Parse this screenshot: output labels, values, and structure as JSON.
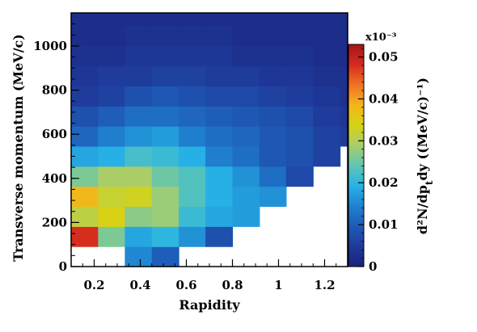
{
  "chart_data": {
    "type": "heatmap",
    "xlabel": "Rapidity",
    "ylabel": "Transverse momentum (MeV/c)",
    "zlabel": "d²N/dp",
    "zlabel_sub": "t",
    "zlabel_tail": "dy ((MeV/c)⁻¹)",
    "z_multiplier": "x10⁻³",
    "xlim": [
      0.1,
      1.3
    ],
    "ylim": [
      0,
      1150
    ],
    "zlim": [
      0,
      0.053
    ],
    "x_ticks": [
      {
        "v": 0.2,
        "label": "0.2"
      },
      {
        "v": 0.4,
        "label": "0.4"
      },
      {
        "v": 0.6,
        "label": "0.6"
      },
      {
        "v": 0.8,
        "label": "0.8"
      },
      {
        "v": 1.0,
        "label": "1"
      },
      {
        "v": 1.2,
        "label": "1.2"
      }
    ],
    "y_ticks": [
      {
        "v": 0,
        "label": "0"
      },
      {
        "v": 200,
        "label": "200"
      },
      {
        "v": 400,
        "label": "400"
      },
      {
        "v": 600,
        "label": "600"
      },
      {
        "v": 800,
        "label": "800"
      },
      {
        "v": 1000,
        "label": "1000"
      }
    ],
    "z_ticks": [
      {
        "v": 0,
        "label": "0"
      },
      {
        "v": 0.01,
        "label": "0.01"
      },
      {
        "v": 0.02,
        "label": "0.02"
      },
      {
        "v": 0.03,
        "label": "0.03"
      },
      {
        "v": 0.04,
        "label": "0.04"
      },
      {
        "v": 0.05,
        "label": "0.05"
      }
    ],
    "x_bin_edges": [
      0.1,
      0.217,
      0.333,
      0.45,
      0.567,
      0.683,
      0.8,
      0.917,
      1.033,
      1.15,
      1.267,
      1.3
    ],
    "y_bin_edges": [
      0,
      91,
      182,
      273,
      364,
      455,
      546,
      637,
      728,
      819,
      910,
      1001,
      1092,
      1150
    ],
    "z_values": [
      [
        null,
        null,
        0.015,
        0.01,
        null,
        null,
        null,
        null,
        null,
        null,
        null
      ],
      [
        0.048,
        0.026,
        0.018,
        0.02,
        0.016,
        0.008,
        null,
        null,
        null,
        null,
        null
      ],
      [
        0.031,
        0.034,
        0.027,
        0.028,
        0.021,
        0.018,
        0.017,
        null,
        null,
        null,
        null
      ],
      [
        0.038,
        0.032,
        0.033,
        0.028,
        0.023,
        0.019,
        0.017,
        0.016,
        null,
        null,
        null
      ],
      [
        0.026,
        0.029,
        0.029,
        0.025,
        0.023,
        0.019,
        0.016,
        0.012,
        0.007,
        null,
        null
      ],
      [
        0.018,
        0.019,
        0.022,
        0.021,
        0.019,
        0.014,
        0.012,
        0.009,
        0.008,
        0.006,
        null
      ],
      [
        0.011,
        0.014,
        0.016,
        0.017,
        0.014,
        0.012,
        0.011,
        0.009,
        0.008,
        0.006,
        0.005
      ],
      [
        0.008,
        0.01,
        0.012,
        0.012,
        0.011,
        0.01,
        0.009,
        0.008,
        0.007,
        0.005,
        0.004
      ],
      [
        0.005,
        0.006,
        0.008,
        0.009,
        0.008,
        0.007,
        0.007,
        0.006,
        0.005,
        0.004,
        0.003
      ],
      [
        0.004,
        0.005,
        0.005,
        0.006,
        0.006,
        0.005,
        0.005,
        0.004,
        0.004,
        0.003,
        0.003
      ],
      [
        0.003,
        0.003,
        0.004,
        0.004,
        0.004,
        0.004,
        0.003,
        0.003,
        0.003,
        0.002,
        0.002
      ],
      [
        0.002,
        0.002,
        0.003,
        0.003,
        0.003,
        0.003,
        0.002,
        0.002,
        0.002,
        0.002,
        0.002
      ],
      [
        0.002,
        0.002,
        0.002,
        0.002,
        0.002,
        0.002,
        0.002,
        0.002,
        0.002,
        0.002,
        0.002
      ]
    ],
    "empty_color": "#ffffff",
    "colormap": [
      "#1a237e",
      "#1f3a9a",
      "#1e5bb8",
      "#1f82d0",
      "#27b3e6",
      "#5fc6b3",
      "#a9cd6a",
      "#d6d313",
      "#f5b41d",
      "#f07325",
      "#d62a1f",
      "#a3171a"
    ],
    "grid": false,
    "legend": "colorbar-right"
  }
}
